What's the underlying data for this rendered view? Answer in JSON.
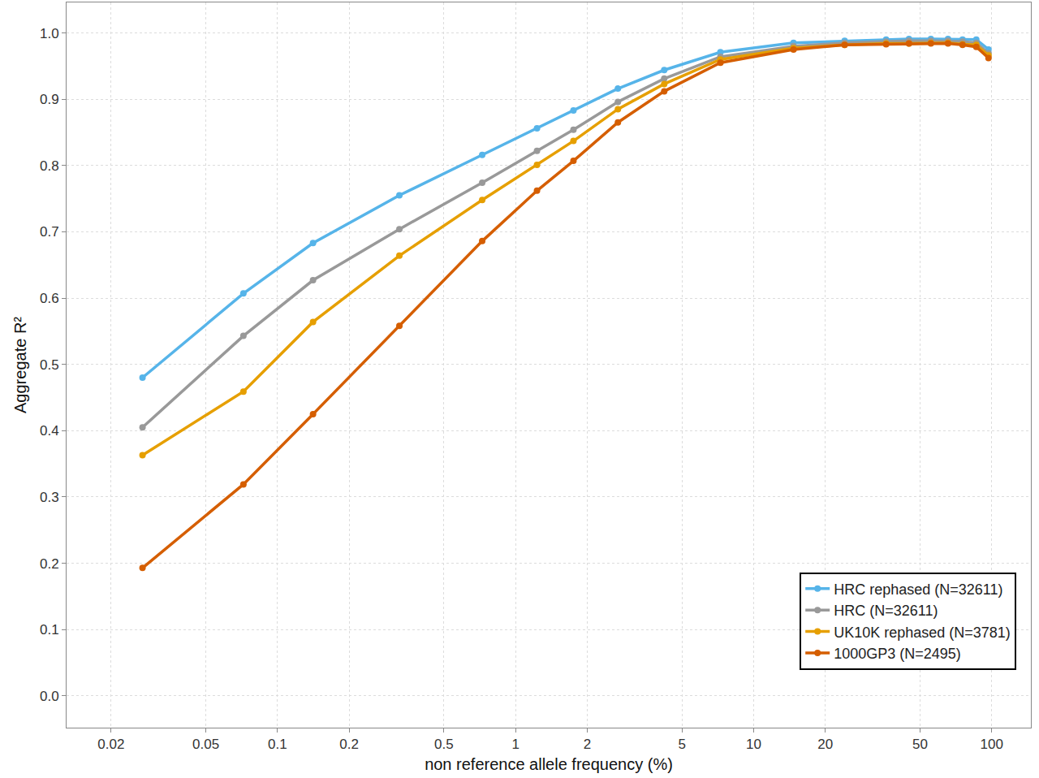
{
  "chart_data": {
    "type": "line",
    "x_label": "non reference allele frequency (%)",
    "y_label": "Aggregate R²",
    "x": [
      0.0271,
      0.0719,
      0.141,
      0.325,
      0.724,
      1.23,
      1.75,
      2.69,
      4.21,
      7.25,
      14.7,
      24.1,
      36.0,
      44.9,
      55.5,
      65.5,
      75.4,
      86.1,
      96.9
    ],
    "series": [
      {
        "name": "HRC rephased (N=32611)",
        "color": "#56b4e9",
        "values": [
          0.48,
          0.607,
          0.683,
          0.755,
          0.816,
          0.856,
          0.883,
          0.916,
          0.944,
          0.971,
          0.985,
          0.988,
          0.99,
          0.991,
          0.991,
          0.991,
          0.99,
          0.99,
          0.975
        ]
      },
      {
        "name": "HRC (N=32611)",
        "color": "#999999",
        "values": [
          0.405,
          0.543,
          0.627,
          0.704,
          0.774,
          0.822,
          0.854,
          0.896,
          0.931,
          0.964,
          0.98,
          0.985,
          0.987,
          0.988,
          0.988,
          0.988,
          0.987,
          0.985,
          0.969
        ]
      },
      {
        "name": "UK10K rephased (N=3781)",
        "color": "#e69f00",
        "values": [
          0.363,
          0.459,
          0.564,
          0.664,
          0.748,
          0.801,
          0.837,
          0.885,
          0.923,
          0.96,
          0.977,
          0.982,
          0.984,
          0.984,
          0.985,
          0.985,
          0.983,
          0.982,
          0.966
        ]
      },
      {
        "name": "1000GP3 (N=2495)",
        "color": "#d55e00",
        "values": [
          0.193,
          0.319,
          0.425,
          0.558,
          0.686,
          0.762,
          0.807,
          0.865,
          0.912,
          0.955,
          0.975,
          0.982,
          0.983,
          0.984,
          0.984,
          0.984,
          0.982,
          0.979,
          0.962
        ]
      }
    ],
    "log": "x",
    "xlim": [
      0.013,
      146
    ],
    "xticks": [
      0.02,
      0.05,
      0.1,
      0.2,
      0.5,
      1,
      2,
      5,
      10,
      20,
      50,
      100
    ],
    "ylim": [
      -0.048,
      1.046
    ],
    "yticks": [
      {
        "value": 0,
        "label": "0.0"
      },
      {
        "value": 0.1,
        "label": "0.1"
      },
      {
        "value": 0.2,
        "label": "0.2"
      },
      {
        "value": 0.3,
        "label": "0.3"
      },
      {
        "value": 0.4,
        "label": "0.4"
      },
      {
        "value": 0.5,
        "label": "0.5"
      },
      {
        "value": 0.6,
        "label": "0.6"
      },
      {
        "value": 0.7,
        "label": "0.7"
      },
      {
        "value": 0.8,
        "label": "0.8"
      },
      {
        "value": 0.9,
        "label": "0.9"
      },
      {
        "value": 1,
        "label": "1.0"
      }
    ],
    "grid": true,
    "legend": "lower right",
    "marker": "circle"
  }
}
